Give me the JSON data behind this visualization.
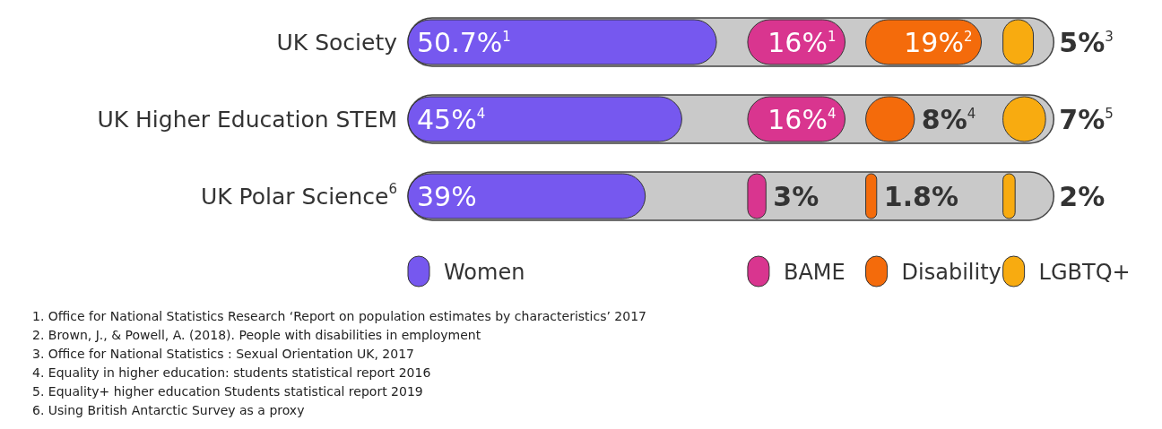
{
  "chart_data": [
    {
      "type": "bar",
      "orientation": "horizontal",
      "categories": [
        "UK Society",
        "UK Higher Education STEM",
        "UK Polar Science$^{6}$"
      ],
      "series": [
        {
          "name": "Women",
          "color": "#7658ef",
          "values": [
            50.7,
            45,
            39
          ],
          "value_labels": [
            "50.7%$^{1}$",
            "45%$^{4}$",
            "39%"
          ]
        }
      ],
      "legend": "bottom",
      "annotations": [
        "1. Office for National Statistics Research ‘Report on population estimates by characteristics’ 2017",
        "2. Brown, J., & Powell, A. (2018). People with disabilities in employment",
        "3. Office for National Statistics : Sexual Orientation UK, 2017",
        "4. Equality in higher education: students statistical report 2016",
        "5. Equality+ higher education Students statistical report 2019",
        "6. Using British Antarctic Survey as a proxy"
      ]
    },
    {
      "type": "bar",
      "orientation": "horizontal",
      "categories": [
        null,
        null,
        null
      ],
      "series": [
        {
          "name": "BAME",
          "color": "#d9358f",
          "values": [
            16,
            16,
            3
          ],
          "value_labels": [
            "16%$^{1}$",
            "16%$^{4}$",
            "3%"
          ]
        }
      ],
      "legend": "bottom"
    },
    {
      "type": "bar",
      "orientation": "horizontal",
      "categories": [
        null,
        null,
        null
      ],
      "series": [
        {
          "name": "Disability",
          "color": "#f46b0b",
          "values": [
            19,
            8,
            1.8
          ],
          "value_labels": [
            "19%$^{2}$",
            "8%$^{4}$",
            "1.8%"
          ]
        }
      ],
      "legend": "bottom"
    },
    {
      "type": "bar",
      "orientation": "horizontal",
      "categories": [
        null,
        null,
        null
      ],
      "series": [
        {
          "name": "LGBTQ+",
          "color": "#f8ab10",
          "values": [
            5,
            7,
            2
          ],
          "value_labels": [
            "5%$^{3}$",
            "7%$^{5}$",
            "2%"
          ]
        }
      ],
      "legend": "bottom"
    }
  ]
}
